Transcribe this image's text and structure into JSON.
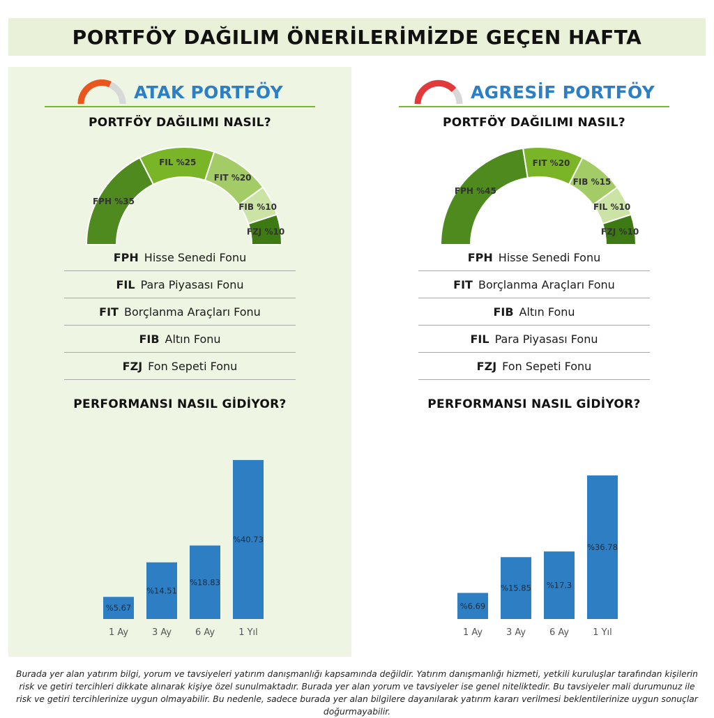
{
  "header": {
    "title": "PORTFÖY DAĞILIM ÖNERİLERİMİZDE GEÇEN HAFTA"
  },
  "colors": {
    "gauge_icon_left": "#e8561e",
    "gauge_icon_right": "#e23a3a",
    "bar": "#2d7ec3",
    "title_blue": "#2c7fc4",
    "panel_left_bg": "#eef5e3"
  },
  "panels": [
    {
      "title": "ATAK PORTFÖY",
      "allocation_heading": "PORTFÖY DAĞILIMI NASIL?",
      "performance_heading": "PERFORMANSI NASIL GİDİYOR?",
      "legend": [
        {
          "code": "FPH",
          "name": "Hisse Senedi Fonu"
        },
        {
          "code": "FIL",
          "name": "Para Piyasası Fonu"
        },
        {
          "code": "FIT",
          "name": "Borçlanma Araçları Fonu"
        },
        {
          "code": "FIB",
          "name": "Altın Fonu"
        },
        {
          "code": "FZJ",
          "name": "Fon Sepeti Fonu"
        }
      ]
    },
    {
      "title": "AGRESİF PORTFÖY",
      "allocation_heading": "PORTFÖY DAĞILIMI NASIL?",
      "performance_heading": "PERFORMANSI NASIL GİDİYOR?",
      "legend": [
        {
          "code": "FPH",
          "name": "Hisse Senedi Fonu"
        },
        {
          "code": "FIT",
          "name": "Borçlanma Araçları Fonu"
        },
        {
          "code": "FIB",
          "name": "Altın Fonu"
        },
        {
          "code": "FIL",
          "name": "Para Piyasası Fonu"
        },
        {
          "code": "FZJ",
          "name": "Fon Sepeti Fonu"
        }
      ]
    }
  ],
  "chart_data": [
    {
      "type": "pie",
      "variant": "half-donut",
      "slices": [
        {
          "label": "FPH %35",
          "value": 35,
          "color": "#4e8a1d"
        },
        {
          "label": "FIL %25",
          "value": 25,
          "color": "#7ab527"
        },
        {
          "label": "FIT %20",
          "value": 20,
          "color": "#a3cc66"
        },
        {
          "label": "FIB %10",
          "value": 10,
          "color": "#cbe3a4"
        },
        {
          "label": "FZJ %10",
          "value": 10,
          "color": "#3e7a14"
        }
      ]
    },
    {
      "type": "bar",
      "categories": [
        "1 Ay",
        "3 Ay",
        "6 Ay",
        "1 Yıl"
      ],
      "values": [
        5.67,
        14.51,
        18.83,
        40.73
      ],
      "labels": [
        "%5.67",
        "%14.51",
        "%18.83",
        "%40.73"
      ],
      "ylim": [
        0,
        45
      ]
    },
    {
      "type": "pie",
      "variant": "half-donut",
      "slices": [
        {
          "label": "FPH %45",
          "value": 45,
          "color": "#4e8a1d"
        },
        {
          "label": "FIT %20",
          "value": 20,
          "color": "#7ab527"
        },
        {
          "label": "FIB %15",
          "value": 15,
          "color": "#a3cc66"
        },
        {
          "label": "FIL %10",
          "value": 10,
          "color": "#cbe3a4"
        },
        {
          "label": "FZJ %10",
          "value": 10,
          "color": "#3e7a14"
        }
      ]
    },
    {
      "type": "bar",
      "categories": [
        "1 Ay",
        "3 Ay",
        "6 Ay",
        "1 Yıl"
      ],
      "values": [
        6.69,
        15.85,
        17.3,
        36.78
      ],
      "labels": [
        "%6.69",
        "%15.85",
        "%17.3",
        "%36.78"
      ],
      "ylim": [
        0,
        45
      ]
    }
  ],
  "disclaimer": "Burada yer alan yatırım bilgi, yorum ve tavsiyeleri yatırım danışmanlığı kapsamında değildir. Yatırım danışmanlığı hizmeti, yetkili kuruluşlar tarafından kişilerin risk ve getiri tercihleri dikkate alınarak kişiye özel sunulmaktadır. Burada yer alan yorum ve tavsiyeler ise genel niteliktedir. Bu tavsiyeler mali durumunuz ile risk ve getiri tercihlerinize uygun olmayabilir. Bu nedenle, sadece burada yer alan bilgilere dayanılarak yatırım kararı verilmesi beklentilerinize uygun sonuçlar doğurmayabilir."
}
